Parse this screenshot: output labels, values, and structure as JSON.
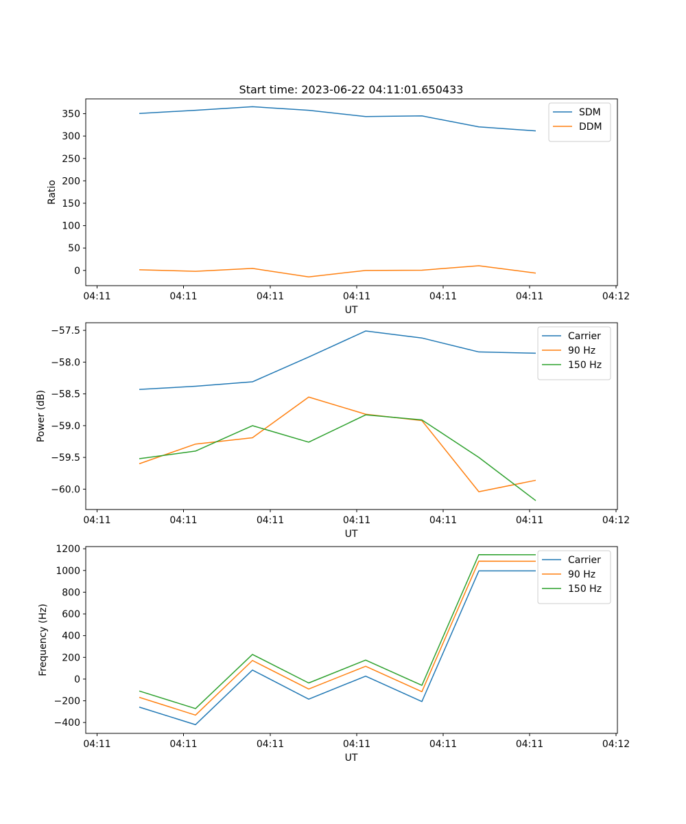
{
  "title": "Start time: 2023-06-22 04:11:01.650433",
  "chart_data": [
    {
      "type": "line",
      "xlabel": "UT",
      "ylabel": "Ratio",
      "x_tick_labels": [
        "04:11",
        "04:11",
        "04:11",
        "04:11",
        "04:11",
        "04:11",
        "04:12"
      ],
      "y_ticks": [
        0,
        50,
        100,
        150,
        200,
        250,
        300,
        350
      ],
      "ylim": [
        -34,
        383
      ],
      "legend_position": "upper right",
      "series": [
        {
          "name": "SDM",
          "color": "#1f77b4",
          "values": [
            350.5,
            357.5,
            365.5,
            357.5,
            343.5,
            345,
            320.5,
            311.5
          ]
        },
        {
          "name": "DDM",
          "color": "#ff7f0e",
          "values": [
            1.5,
            -2,
            4.5,
            -14.5,
            0,
            0.5,
            10.5,
            -6
          ]
        }
      ]
    },
    {
      "type": "line",
      "xlabel": "UT",
      "ylabel": "Power (dB)",
      "x_tick_labels": [
        "04:11",
        "04:11",
        "04:11",
        "04:11",
        "04:11",
        "04:11",
        "04:12"
      ],
      "y_ticks": [
        -60.0,
        -59.5,
        -59.0,
        -58.5,
        -58.0,
        -57.5
      ],
      "y_tick_labels": [
        "−60.0",
        "−59.5",
        "−59.0",
        "−58.5",
        "−58.0",
        "−57.5"
      ],
      "ylim": [
        -60.32,
        -57.38
      ],
      "legend_position": "upper right",
      "series": [
        {
          "name": "Carrier",
          "color": "#1f77b4",
          "values": [
            -58.43,
            -58.38,
            -58.31,
            -57.92,
            -57.51,
            -57.62,
            -57.84,
            -57.86
          ]
        },
        {
          "name": "90 Hz",
          "color": "#ff7f0e",
          "values": [
            -59.6,
            -59.29,
            -59.19,
            -58.55,
            -58.82,
            -58.92,
            -60.04,
            -59.86
          ]
        },
        {
          "name": "150 Hz",
          "color": "#2ca02c",
          "values": [
            -59.52,
            -59.4,
            -59.0,
            -59.26,
            -58.83,
            -58.91,
            -59.5,
            -60.18
          ]
        }
      ]
    },
    {
      "type": "line",
      "xlabel": "UT",
      "ylabel": "Frequency (Hz)",
      "x_tick_labels": [
        "04:11",
        "04:11",
        "04:11",
        "04:11",
        "04:11",
        "04:11",
        "04:12"
      ],
      "y_ticks": [
        -400,
        -200,
        0,
        200,
        400,
        600,
        800,
        1000,
        1200
      ],
      "y_tick_labels": [
        "−400",
        "−200",
        "0",
        "200",
        "400",
        "600",
        "800",
        "1000",
        "1200"
      ],
      "ylim": [
        -500,
        1220
      ],
      "legend_position": "upper right",
      "series": [
        {
          "name": "Carrier",
          "color": "#1f77b4",
          "values": [
            -258,
            -420,
            83,
            -185,
            27,
            -207,
            996,
            996
          ]
        },
        {
          "name": "90 Hz",
          "color": "#ff7f0e",
          "values": [
            -168,
            -332,
            171,
            -92,
            118,
            -116,
            1086,
            1085
          ]
        },
        {
          "name": "150 Hz",
          "color": "#2ca02c",
          "values": [
            -110,
            -272,
            227,
            -36,
            175,
            -58,
            1146,
            1145
          ]
        }
      ]
    }
  ]
}
